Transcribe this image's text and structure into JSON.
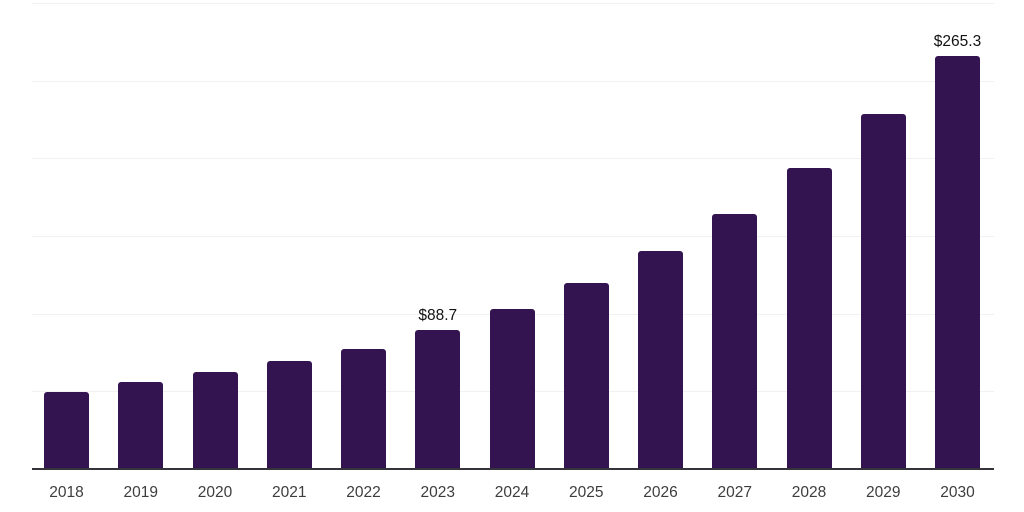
{
  "chart_data": {
    "type": "bar",
    "categories": [
      "2018",
      "2019",
      "2020",
      "2021",
      "2022",
      "2023",
      "2024",
      "2025",
      "2026",
      "2027",
      "2028",
      "2029",
      "2030"
    ],
    "values": [
      49.0,
      55.4,
      61.9,
      69.0,
      76.6,
      88.7,
      102.5,
      119.2,
      139.8,
      163.6,
      193.2,
      228.0,
      265.3
    ],
    "data_labels": {
      "2023": "$88.7",
      "2030": "$265.3"
    },
    "ylim": [
      0,
      300
    ],
    "gridline_step": 50,
    "grid": true,
    "legend": false,
    "y_axis_labels_visible": false,
    "colors": {
      "bar": "#341450",
      "gridline": "#f1f1f1",
      "axis_line": "#35343a",
      "tick_label": "#3d3d3d",
      "data_label": "#121212",
      "background": "#ffffff"
    }
  }
}
